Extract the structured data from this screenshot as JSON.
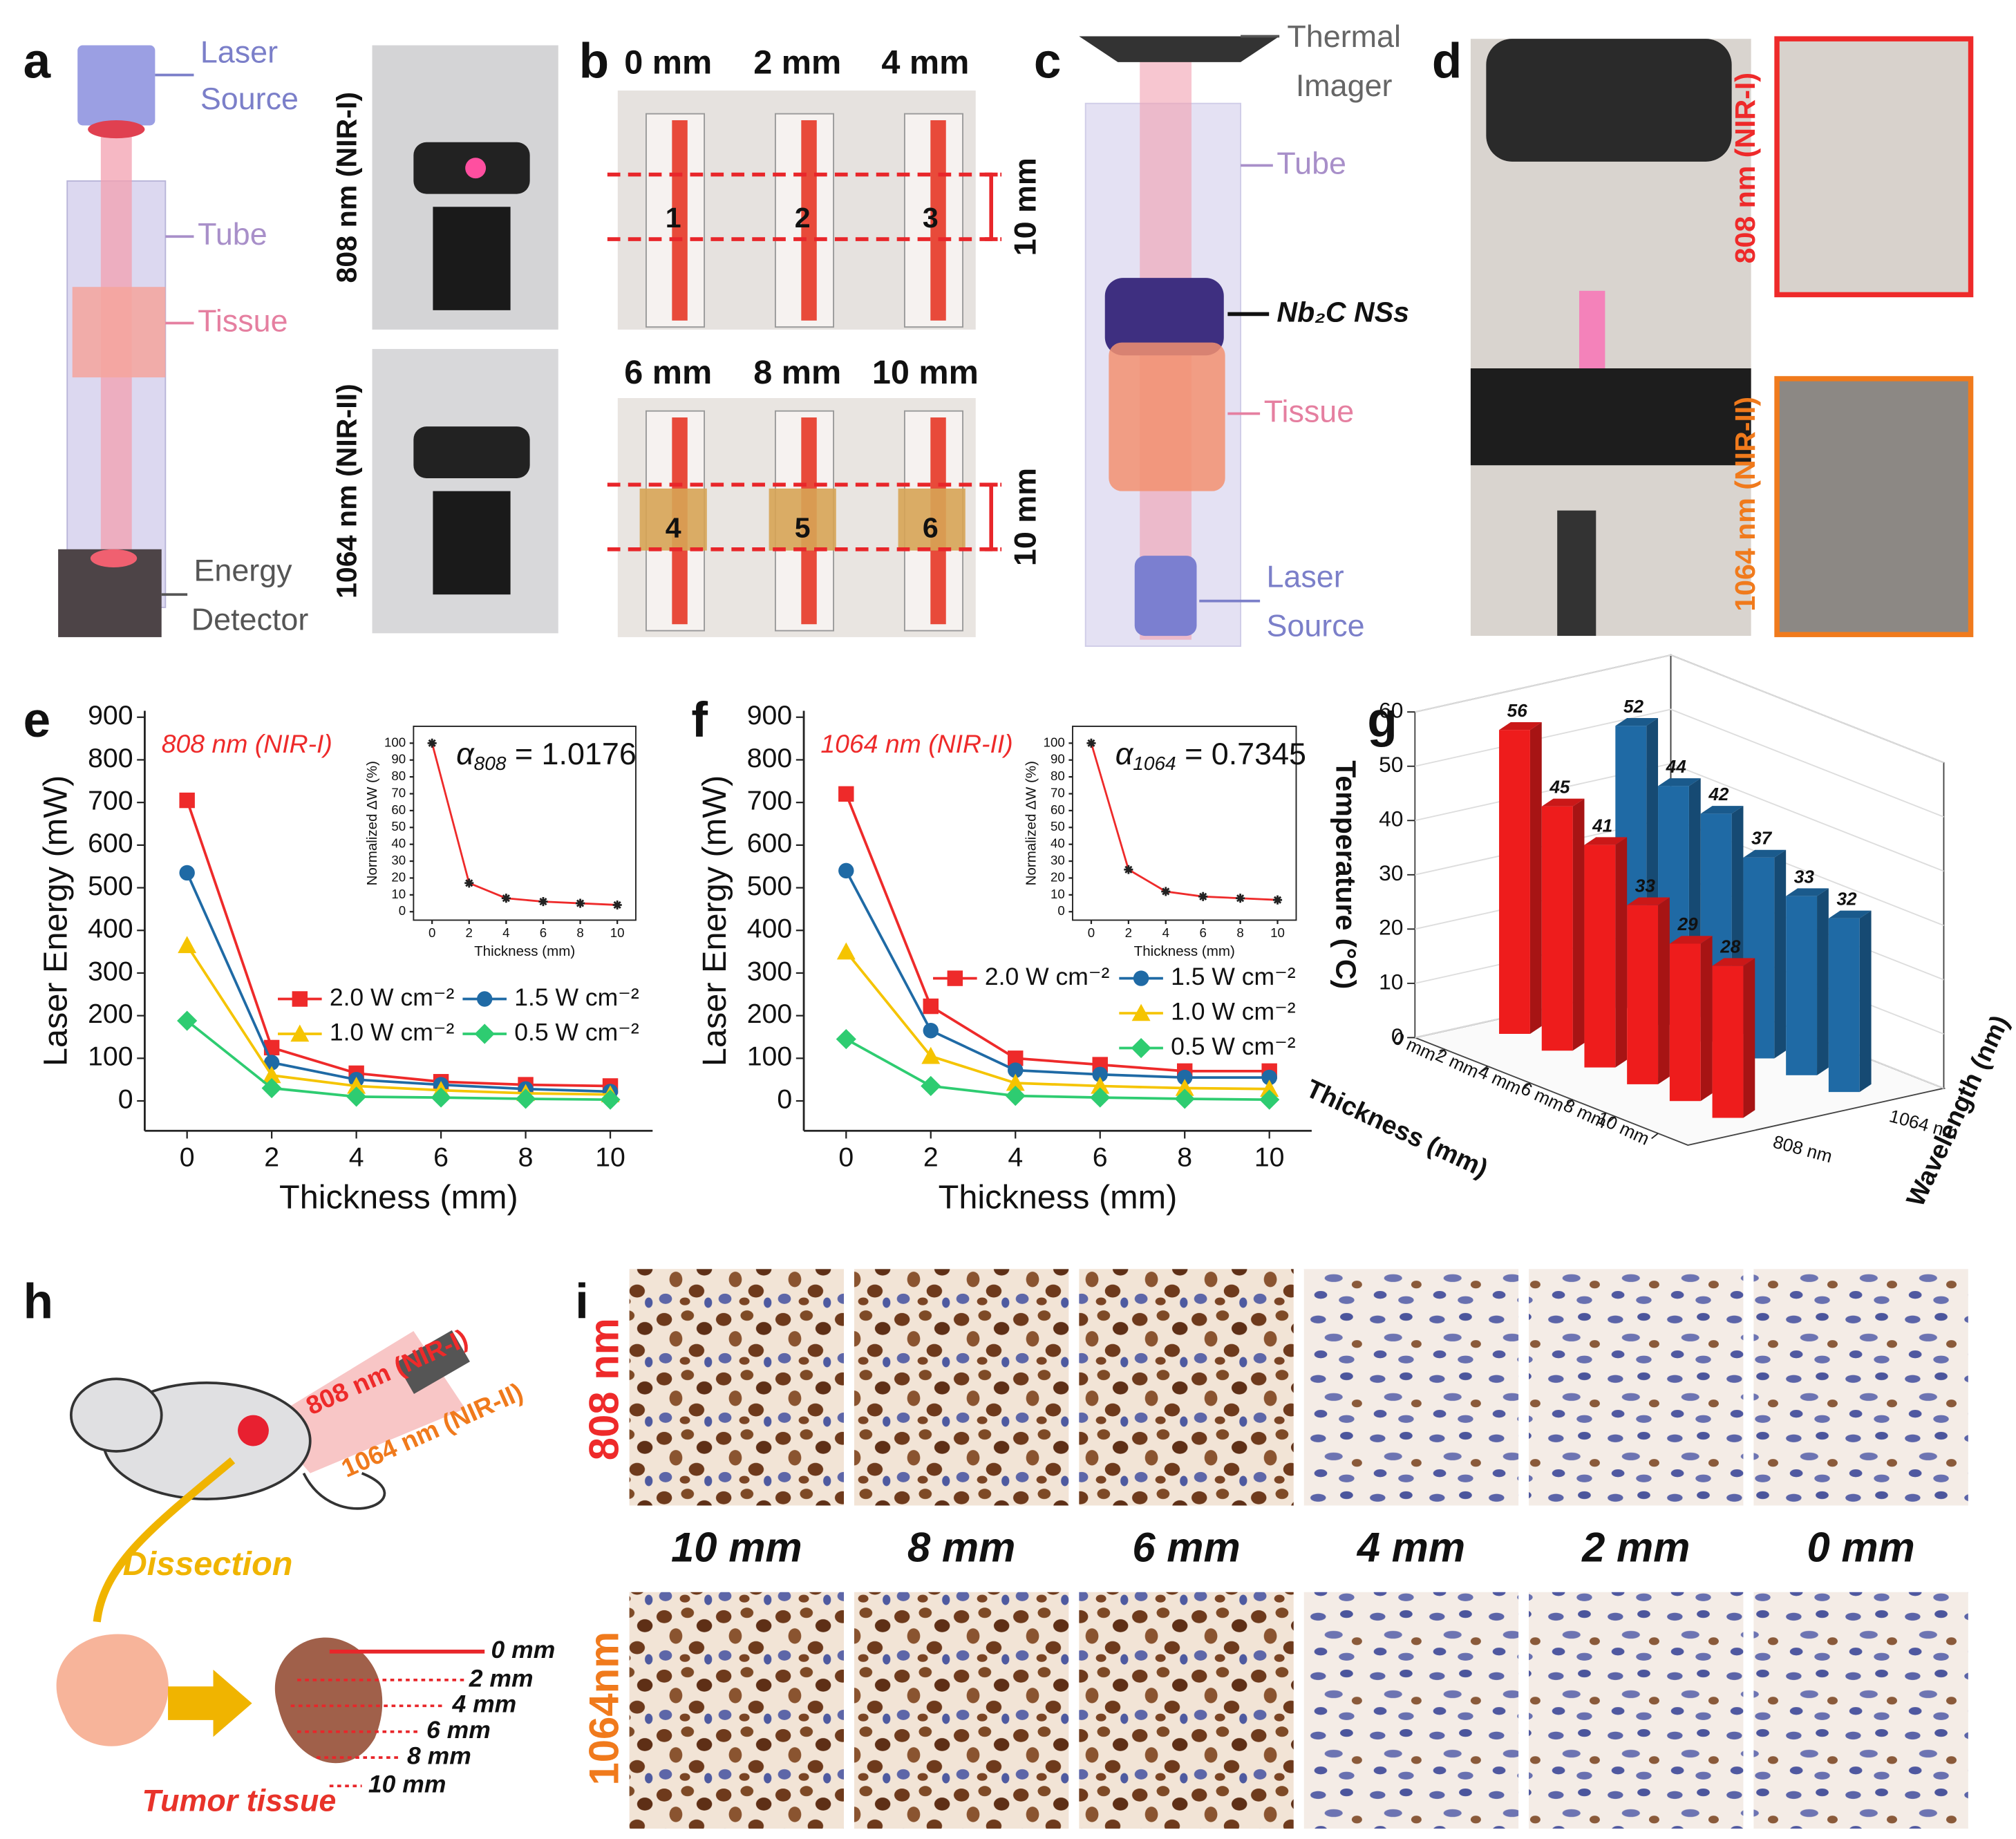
{
  "panel_letters": [
    "a",
    "b",
    "c",
    "d",
    "e",
    "f",
    "g",
    "h",
    "i"
  ],
  "panel_a": {
    "laser_source": [
      "Laser",
      "Source"
    ],
    "tube": "Tube",
    "tissue": "Tissue",
    "energy_detector": [
      "Energy",
      "Detector"
    ],
    "photo_labels": [
      "808 nm (NIR-I)",
      "1064 nm (NIR-II)"
    ]
  },
  "panel_b": {
    "thickness_labels": [
      "0 mm",
      "2 mm",
      "4 mm",
      "6 mm",
      "8 mm",
      "10 mm"
    ],
    "tube_numbers": [
      "1",
      "2",
      "3",
      "4",
      "5",
      "6"
    ],
    "spacing_labels": [
      "10 mm",
      "10 mm"
    ]
  },
  "panel_c": {
    "thermal_imager": [
      "Thermal",
      "Imager"
    ],
    "tube": "Tube",
    "material": "Nb₂C NSs",
    "tissue": "Tissue",
    "laser_source": [
      "Laser",
      "Source"
    ]
  },
  "panel_d": {
    "photo_labels": [
      "808 nm (NIR-I)",
      "1064 nm (NIR-II)"
    ]
  },
  "panel_h": {
    "lasers": [
      "808 nm (NIR-I)",
      "1064 nm (NIR-II)"
    ],
    "step": "Dissection",
    "sample": "Tumor tissue",
    "depths": [
      "0 mm",
      "2 mm",
      "4 mm",
      "6 mm",
      "8 mm",
      "10 mm"
    ]
  },
  "panel_i": {
    "rows": [
      "808 nm",
      "1064nm"
    ],
    "columns": [
      "10 mm",
      "8 mm",
      "6 mm",
      "4 mm",
      "2 mm",
      "0 mm"
    ]
  },
  "chart_data": [
    {
      "type": "line",
      "annotation": "808 nm (NIR-I)",
      "xlabel": "Thickness (mm)",
      "ylabel": "Laser Energy (mW)",
      "x": [
        0,
        2,
        4,
        6,
        8,
        10
      ],
      "xlim": [
        -1,
        11
      ],
      "xticks": [
        0,
        2,
        4,
        6,
        8,
        10
      ],
      "ylim": [
        -70,
        915
      ],
      "yticks": [
        0,
        100,
        200,
        300,
        400,
        500,
        600,
        700,
        800,
        900
      ],
      "series": [
        {
          "name": "2.0 W cm⁻²",
          "color": "#ee2a2a",
          "marker": "square",
          "values": [
            705,
            125,
            65,
            45,
            38,
            35
          ]
        },
        {
          "name": "1.5 W cm⁻²",
          "color": "#1f6aa5",
          "marker": "circle",
          "values": [
            535,
            90,
            50,
            38,
            28,
            22
          ]
        },
        {
          "name": "1.0 W cm⁻²",
          "color": "#f5c400",
          "marker": "triangle",
          "values": [
            365,
            60,
            35,
            25,
            18,
            15
          ]
        },
        {
          "name": "0.5 W cm⁻²",
          "color": "#2ecc71",
          "marker": "diamond",
          "values": [
            188,
            30,
            10,
            8,
            5,
            3
          ]
        }
      ]
    },
    {
      "type": "scatter",
      "xlabel": "Thickness (mm)",
      "ylabel": "Normalized ΔW (%)",
      "annotation": {
        "symbol": "α",
        "subscript": "808",
        "text": " = 1.0176"
      },
      "x": [
        0,
        2,
        4,
        6,
        8,
        10
      ],
      "values": [
        100,
        17,
        8,
        6,
        5,
        4
      ],
      "color": "#222222",
      "fit_color": "#ee2a2a",
      "xlim": [
        -1,
        11
      ],
      "xticks": [
        0,
        2,
        4,
        6,
        8,
        10
      ],
      "ylim": [
        -5,
        110
      ],
      "yticks": [
        0,
        10,
        20,
        30,
        40,
        50,
        60,
        70,
        80,
        90,
        100
      ]
    },
    {
      "type": "line",
      "annotation": "1064 nm (NIR-II)",
      "xlabel": "Thickness (mm)",
      "ylabel": "Laser Energy (mW)",
      "x": [
        0,
        2,
        4,
        6,
        8,
        10
      ],
      "xlim": [
        -1,
        11
      ],
      "xticks": [
        0,
        2,
        4,
        6,
        8,
        10
      ],
      "ylim": [
        -70,
        915
      ],
      "yticks": [
        0,
        100,
        200,
        300,
        400,
        500,
        600,
        700,
        800,
        900
      ],
      "series": [
        {
          "name": "2.0 W cm⁻²",
          "color": "#ee2a2a",
          "marker": "square",
          "values": [
            720,
            222,
            100,
            85,
            70,
            70
          ]
        },
        {
          "name": "1.5 W cm⁻²",
          "color": "#1f6aa5",
          "marker": "circle",
          "values": [
            540,
            165,
            72,
            62,
            55,
            55
          ]
        },
        {
          "name": "1.0 W cm⁻²",
          "color": "#f5c400",
          "marker": "triangle",
          "values": [
            350,
            105,
            42,
            35,
            30,
            28
          ]
        },
        {
          "name": "0.5 W cm⁻²",
          "color": "#2ecc71",
          "marker": "diamond",
          "values": [
            145,
            35,
            12,
            8,
            5,
            3
          ]
        }
      ]
    },
    {
      "type": "scatter",
      "xlabel": "Thickness (mm)",
      "ylabel": "Normalized ΔW (%)",
      "annotation": {
        "symbol": "α",
        "subscript": "1064",
        "text": " = 0.7345"
      },
      "x": [
        0,
        2,
        4,
        6,
        8,
        10
      ],
      "values": [
        100,
        25,
        12,
        9,
        8,
        7
      ],
      "color": "#222222",
      "fit_color": "#ee2a2a",
      "xlim": [
        -1,
        11
      ],
      "xticks": [
        0,
        2,
        4,
        6,
        8,
        10
      ],
      "ylim": [
        -5,
        110
      ],
      "yticks": [
        0,
        10,
        20,
        30,
        40,
        50,
        60,
        70,
        80,
        90,
        100
      ]
    },
    {
      "type": "bar3d",
      "xlabel": "Thickness (mm)",
      "depth_label": "Wavelength (nm)",
      "ylabel": "Temperature (°C)",
      "categories": [
        "0 mm",
        "2 mm",
        "4 mm",
        "6 mm",
        "8 mm",
        "10 mm"
      ],
      "ylim": [
        0,
        60
      ],
      "yticks": [
        0,
        10,
        20,
        30,
        40,
        50,
        60
      ],
      "series": [
        {
          "name": "808 nm",
          "color": "#ee1c1c",
          "values": [
            56,
            45,
            41,
            33,
            29,
            28
          ]
        },
        {
          "name": "1064 nm",
          "color": "#1f6aa5",
          "values": [
            52,
            44,
            42,
            37,
            33,
            32
          ]
        }
      ]
    }
  ]
}
